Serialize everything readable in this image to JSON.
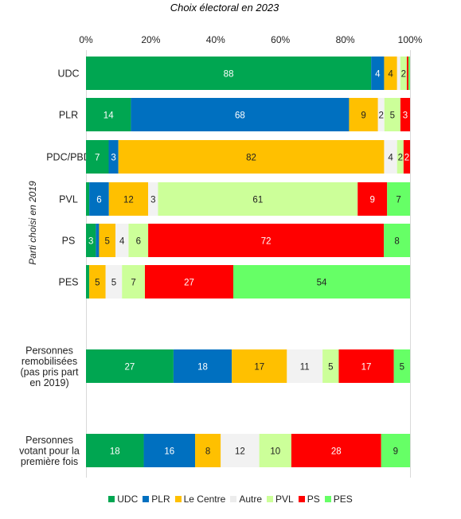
{
  "chart_data": {
    "type": "bar",
    "orientation": "horizontal",
    "stacked": "percent",
    "title": "Choix électoral en 2023",
    "ylabel": "Parti choisi en 2019",
    "xticks": [
      "0%",
      "20%",
      "40%",
      "60%",
      "80%",
      "100%"
    ],
    "xlim": [
      0,
      100
    ],
    "legend_position": "bottom",
    "series": [
      {
        "name": "UDC",
        "color": "#00a651"
      },
      {
        "name": "PLR",
        "color": "#0070c0"
      },
      {
        "name": "Le Centre",
        "color": "#ffc000"
      },
      {
        "name": "Autre",
        "color": "#f2f2f2"
      },
      {
        "name": "PVL",
        "color": "#ccff99"
      },
      {
        "name": "PS",
        "color": "#ff0000"
      },
      {
        "name": "PES",
        "color": "#66ff66"
      }
    ],
    "rows": [
      {
        "label": [
          "UDC"
        ],
        "values": [
          88,
          4,
          4,
          1,
          2,
          0.5,
          0.5
        ],
        "labels": [
          "88",
          "4",
          "4",
          "",
          "2",
          "",
          ""
        ]
      },
      {
        "label": [
          "PLR"
        ],
        "values": [
          14,
          68,
          9,
          2,
          5,
          3,
          0
        ],
        "labels": [
          "14",
          "68",
          "9",
          "2",
          "5",
          "3",
          ""
        ]
      },
      {
        "label": [
          "PDC/PBD"
        ],
        "values": [
          7,
          3,
          82,
          4,
          2,
          2,
          0
        ],
        "labels": [
          "7",
          "3",
          "82",
          "4",
          "2",
          "2",
          ""
        ]
      },
      {
        "label": [
          "PVL"
        ],
        "values": [
          1,
          6,
          12,
          3,
          61,
          9,
          7
        ],
        "labels": [
          "",
          "6",
          "12",
          "3",
          "61",
          "9",
          "7"
        ]
      },
      {
        "label": [
          "PS"
        ],
        "values": [
          3,
          1,
          5,
          4,
          6,
          72,
          8
        ],
        "labels": [
          "3",
          "",
          "5",
          "4",
          "6",
          "72",
          "8"
        ]
      },
      {
        "label": [
          "PES"
        ],
        "values": [
          1,
          0,
          5,
          5,
          7,
          27,
          54
        ],
        "labels": [
          "",
          "",
          "5",
          "5",
          "7",
          "27",
          "54"
        ]
      },
      {
        "label": [
          "Personnes",
          "remobilisées",
          "(pas pris part",
          "en 2019)"
        ],
        "values": [
          27,
          18,
          17,
          11,
          5,
          17,
          5
        ],
        "labels": [
          "27",
          "18",
          "17",
          "11",
          "5",
          "17",
          "5"
        ]
      },
      {
        "label": [
          "Personnes",
          "votant pour la",
          "première fois"
        ],
        "values": [
          18,
          16,
          8,
          12,
          10,
          28,
          9
        ],
        "labels": [
          "18",
          "16",
          "8",
          "12",
          "10",
          "28",
          "9"
        ]
      }
    ]
  }
}
